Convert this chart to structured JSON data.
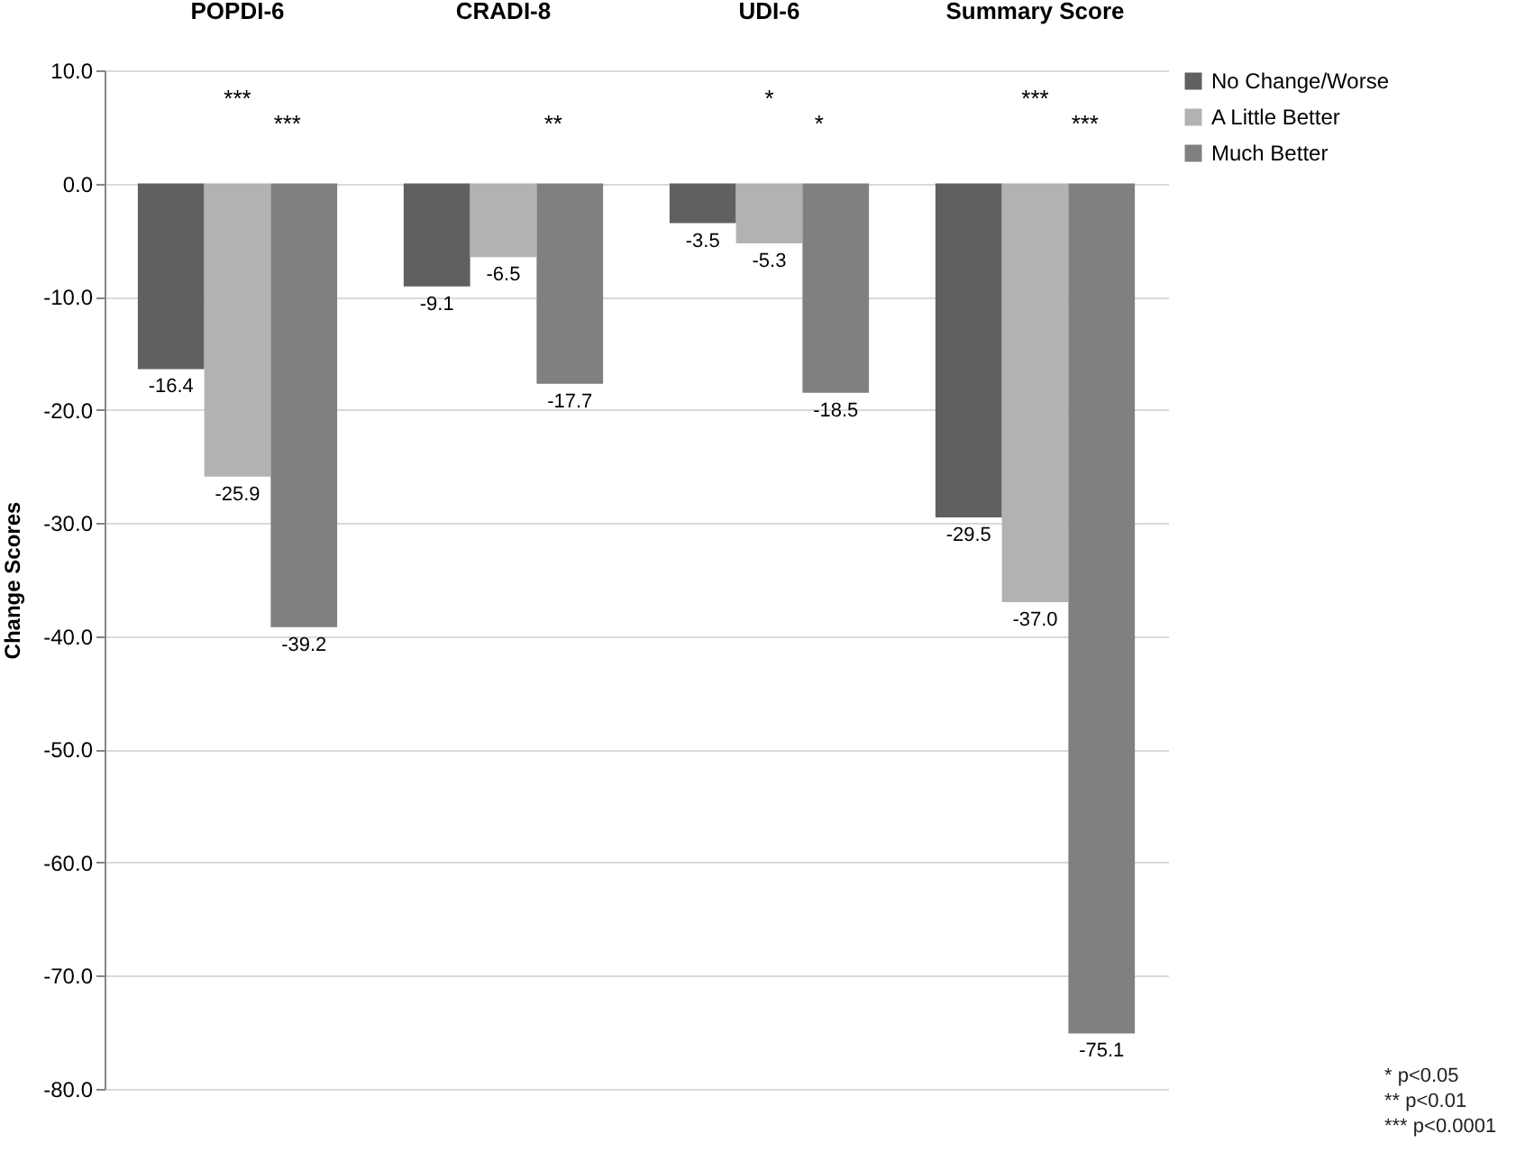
{
  "chart_data": {
    "type": "bar",
    "ylabel": "Change Scores",
    "categories": [
      "POPDI-6",
      "CRADI-8",
      "UDI-6",
      "Summary Score"
    ],
    "series": [
      {
        "name": "No Change/Worse",
        "color": "#606060",
        "values": [
          -16.4,
          -9.1,
          -3.5,
          -29.5
        ],
        "value_labels": [
          "-16.4",
          "-9.1",
          "-3.5",
          "-29.5"
        ]
      },
      {
        "name": "A Little Better",
        "color": "#b2b2b2",
        "values": [
          -25.9,
          -6.5,
          -5.3,
          -37.0
        ],
        "value_labels": [
          "-25.9",
          "-6.5",
          "-5.3",
          "-37.0"
        ]
      },
      {
        "name": "Much Better",
        "color": "#808080",
        "values": [
          -39.2,
          -17.7,
          -18.5,
          -75.1
        ],
        "value_labels": [
          "-39.2",
          "-17.7",
          "-18.5",
          "-75.1"
        ]
      }
    ],
    "ylim": [
      -80,
      10
    ],
    "yticks": [
      {
        "value": -80,
        "label": "-80.0"
      },
      {
        "value": -70,
        "label": "-70.0"
      },
      {
        "value": -60,
        "label": "-60.0"
      },
      {
        "value": -50,
        "label": "-50.0"
      },
      {
        "value": -40,
        "label": "-40.0"
      },
      {
        "value": -30,
        "label": "-30.0"
      },
      {
        "value": -20,
        "label": "-20.0"
      },
      {
        "value": -10,
        "label": "-10.0"
      },
      {
        "value": 0,
        "label": "0.0"
      },
      {
        "value": 10,
        "label": "10.0"
      }
    ],
    "grid": "y",
    "legend": "right",
    "annotations": [
      "***",
      "***",
      "**",
      "*",
      "*",
      "***",
      "***",
      "* p<0.05",
      "** p<0.01",
      "*** p<0.0001"
    ]
  }
}
